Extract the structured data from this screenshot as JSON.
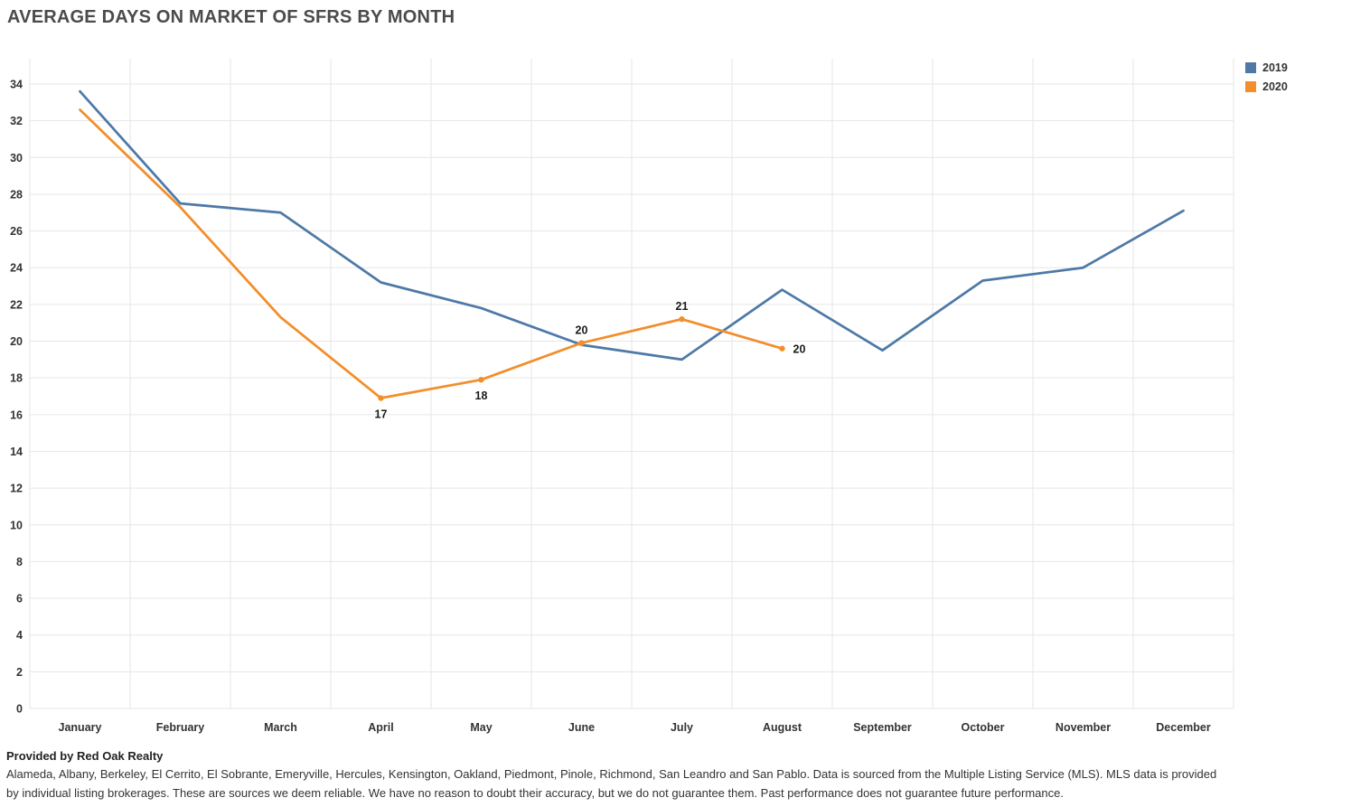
{
  "title": "AVERAGE DAYS ON MARKET OF SFRS BY MONTH",
  "legend": {
    "items": [
      {
        "label": "2019",
        "color": "#4e79a7"
      },
      {
        "label": "2020",
        "color": "#f28e2b"
      }
    ]
  },
  "footer": {
    "provider": "Provided by Red Oak Realty",
    "disclaimer": "Alameda, Albany, Berkeley, El Cerrito, El Sobrante, Emeryville, Hercules, Kensington, Oakland, Piedmont, Pinole, Richmond, San Leandro and San Pablo. Data is sourced from the Multiple Listing Service (MLS). MLS data is provided by individual listing brokerages. These are sources we deem reliable. We have no reason to doubt their accuracy, but we do not guarantee them. Past performance does not guarantee future performance."
  },
  "chart_data": {
    "type": "line",
    "title": "AVERAGE DAYS ON MARKET OF SFRS BY MONTH",
    "categories": [
      "January",
      "February",
      "March",
      "April",
      "May",
      "June",
      "July",
      "August",
      "September",
      "October",
      "November",
      "December"
    ],
    "xlabel": "",
    "ylabel": "",
    "ylim": [
      0,
      34
    ],
    "ytick_step": 2,
    "grid": true,
    "legend_position": "top-right",
    "series": [
      {
        "name": "2019",
        "color": "#4e79a7",
        "values": [
          33.6,
          27.5,
          27.0,
          23.2,
          21.8,
          19.8,
          19.0,
          22.8,
          19.5,
          23.3,
          24.0,
          27.1
        ]
      },
      {
        "name": "2020",
        "color": "#f28e2b",
        "values": [
          32.6,
          27.3,
          21.3,
          16.9,
          17.9,
          19.9,
          21.2,
          19.6
        ],
        "markers": [
          3,
          4,
          5,
          6,
          7
        ],
        "point_labels": [
          {
            "index": 3,
            "text": "17",
            "placement": "below"
          },
          {
            "index": 4,
            "text": "18",
            "placement": "below"
          },
          {
            "index": 5,
            "text": "20",
            "placement": "above"
          },
          {
            "index": 6,
            "text": "21",
            "placement": "above"
          },
          {
            "index": 7,
            "text": "20",
            "placement": "right"
          }
        ]
      }
    ]
  }
}
